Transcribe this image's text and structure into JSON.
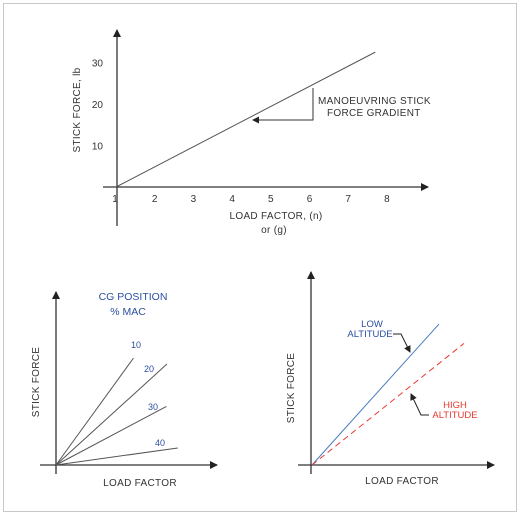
{
  "chart_data": [
    {
      "type": "line",
      "xlabel_line1": "LOAD FACTOR, (n)",
      "xlabel_line2": "or  (g)",
      "ylabel": "STICK FORCE,  lb",
      "x_ticks": [
        "1",
        "2",
        "3",
        "4",
        "5",
        "6",
        "7",
        "8"
      ],
      "y_ticks": [
        "10",
        "20",
        "30"
      ],
      "xlim": [
        1,
        8
      ],
      "ylim": [
        0,
        30
      ],
      "series": [
        {
          "x": [
            1,
            7.7
          ],
          "y": [
            0,
            32.5
          ]
        }
      ],
      "annotation_line1": "MANOEUVRING STICK",
      "annotation_line2": "FORCE GRADIENT",
      "grid": false
    },
    {
      "type": "line",
      "title_line1": "CG POSITION",
      "title_line2": "% MAC",
      "xlabel": "LOAD FACTOR",
      "ylabel": "STICK FORCE",
      "series": [
        {
          "name": "10",
          "slope": 1.38
        },
        {
          "name": "20",
          "slope": 0.91
        },
        {
          "name": "30",
          "slope": 0.53
        },
        {
          "name": "40",
          "slope": 0.14
        }
      ],
      "grid": false
    },
    {
      "type": "line",
      "xlabel": "LOAD FACTOR",
      "ylabel": "STICK FORCE",
      "series": [
        {
          "name_line1": "LOW",
          "name_line2": "ALTITUDE",
          "color": "#4a7cc0",
          "style": "solid",
          "slope": 1.11
        },
        {
          "name_line1": "HIGH",
          "name_line2": "ALTITUDE",
          "color": "#e8392e",
          "style": "dashed",
          "slope": 0.8
        }
      ],
      "grid": false
    }
  ],
  "colors": {
    "axis": "#333333",
    "blue_text": "#2b4fa0",
    "red_text": "#e8392e"
  }
}
